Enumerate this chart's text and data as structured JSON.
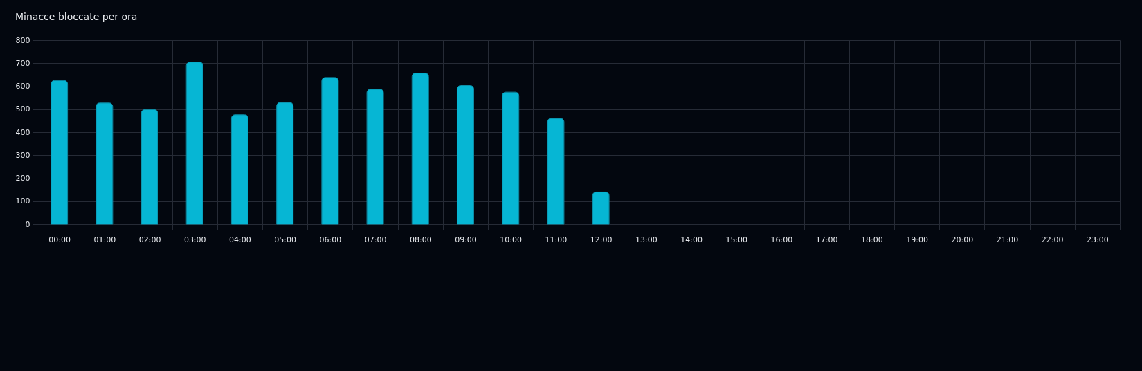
{
  "chart_data": {
    "type": "bar",
    "title": "Minacce bloccate per ora",
    "categories": [
      "00:00",
      "01:00",
      "02:00",
      "03:00",
      "04:00",
      "05:00",
      "06:00",
      "07:00",
      "08:00",
      "09:00",
      "10:00",
      "11:00",
      "12:00",
      "13:00",
      "14:00",
      "15:00",
      "16:00",
      "17:00",
      "18:00",
      "19:00",
      "20:00",
      "21:00",
      "22:00",
      "23:00"
    ],
    "values": [
      625,
      527,
      498,
      705,
      476,
      529,
      638,
      587,
      657,
      603,
      574,
      460,
      140,
      null,
      null,
      null,
      null,
      null,
      null,
      null,
      null,
      null,
      null,
      null
    ],
    "color": "#06b6d4",
    "ylim": [
      0,
      800
    ],
    "yticks": [
      0,
      100,
      200,
      300,
      400,
      500,
      600,
      700,
      800
    ],
    "grid": true
  }
}
